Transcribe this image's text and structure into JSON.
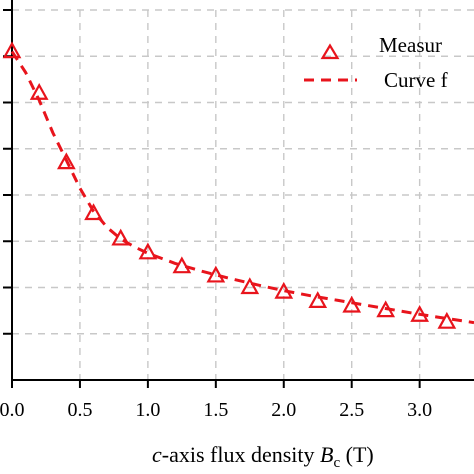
{
  "chart_data": {
    "type": "scatter",
    "xlabel_parts": {
      "italic_c": "c",
      "text": "-axis flux density ",
      "italic_B": "B",
      "subscript": "c",
      "unit": " (T)"
    },
    "x_ticks": [
      "0.0",
      "0.5",
      "1.0",
      "1.5",
      "2.0",
      "2.5",
      "3.0"
    ],
    "x_tick_values": [
      0.0,
      0.5,
      1.0,
      1.5,
      2.0,
      2.5,
      3.0
    ],
    "xlim": [
      0.0,
      3.4
    ],
    "ylim": [
      0,
      8.0
    ],
    "y_tick_values": [
      0,
      1,
      2,
      3,
      4,
      5,
      6,
      7,
      8
    ],
    "grid": true,
    "legend_position": "top-right",
    "legend": {
      "measured": "Measur",
      "fit": "Curve f"
    },
    "series": [
      {
        "kind": "markers",
        "marker": "triangle-open",
        "color": "#e8141c",
        "x": [
          0.0,
          0.2,
          0.4,
          0.6,
          0.8,
          1.0,
          1.25,
          1.5,
          1.75,
          2.0,
          2.25,
          2.5,
          2.75,
          3.0,
          3.2
        ],
        "y": [
          7.1,
          6.2,
          4.7,
          3.6,
          3.05,
          2.75,
          2.45,
          2.25,
          2.0,
          1.9,
          1.7,
          1.6,
          1.5,
          1.4,
          1.25
        ]
      },
      {
        "kind": "line",
        "dash": "dashed",
        "color": "#e8141c",
        "x": [
          0.0,
          0.1,
          0.2,
          0.3,
          0.4,
          0.5,
          0.6,
          0.7,
          0.8,
          0.9,
          1.0,
          1.2,
          1.4,
          1.6,
          1.8,
          2.0,
          2.2,
          2.4,
          2.6,
          2.8,
          3.0,
          3.2,
          3.4
        ],
        "y": [
          7.1,
          6.65,
          6.05,
          5.35,
          4.75,
          4.15,
          3.65,
          3.3,
          3.05,
          2.88,
          2.74,
          2.52,
          2.35,
          2.2,
          2.06,
          1.93,
          1.82,
          1.72,
          1.62,
          1.52,
          1.42,
          1.33,
          1.24
        ]
      }
    ]
  }
}
